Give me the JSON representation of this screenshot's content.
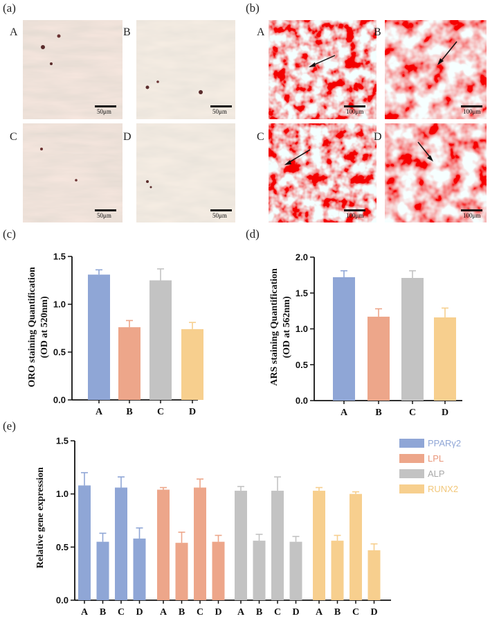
{
  "panels": {
    "a": "(a)",
    "b": "(b)",
    "c": "(c)",
    "d": "(d)",
    "e": "(e)"
  },
  "micrographs": {
    "a": {
      "images": [
        {
          "label": "A",
          "scale": "50μm"
        },
        {
          "label": "B",
          "scale": "50μm"
        },
        {
          "label": "C",
          "scale": "50μm"
        },
        {
          "label": "D",
          "scale": "50μm"
        }
      ]
    },
    "b": {
      "images": [
        {
          "label": "A",
          "scale": "100μm"
        },
        {
          "label": "B",
          "scale": "100μm"
        },
        {
          "label": "C",
          "scale": "100μm"
        },
        {
          "label": "D",
          "scale": "100μm"
        }
      ]
    }
  },
  "colors": {
    "blue": "#8fa6d6",
    "orange": "#eda68a",
    "gray": "#c3c3c3",
    "yellow": "#f7cf8e",
    "legend_blue": "#8fa6d6",
    "legend_orange": "#e9967a",
    "legend_gray": "#a8a8a8",
    "legend_yellow": "#f2c77a"
  },
  "chart_data": [
    {
      "id": "c",
      "type": "bar",
      "categories": [
        "A",
        "B",
        "C",
        "D"
      ],
      "values": [
        1.31,
        0.76,
        1.25,
        0.74
      ],
      "errors": [
        0.05,
        0.07,
        0.12,
        0.07
      ],
      "colors": [
        "#8fa6d6",
        "#eda68a",
        "#c3c3c3",
        "#f7cf8e"
      ],
      "ylabel_line1": "ORO staining Quantification",
      "ylabel_line2": "(OD at 520nm)",
      "ylim": [
        0,
        1.5
      ],
      "yticks": [
        "0.0",
        "0.5",
        "1.0",
        "1.5"
      ],
      "ytick_values": [
        0,
        0.5,
        1.0,
        1.5
      ]
    },
    {
      "id": "d",
      "type": "bar",
      "categories": [
        "A",
        "B",
        "C",
        "D"
      ],
      "values": [
        1.72,
        1.17,
        1.71,
        1.16
      ],
      "errors": [
        0.09,
        0.11,
        0.1,
        0.13
      ],
      "colors": [
        "#8fa6d6",
        "#eda68a",
        "#c3c3c3",
        "#f7cf8e"
      ],
      "ylabel_line1": "ARS staining Quantification",
      "ylabel_line2": "(OD at 562nm)",
      "ylim": [
        0,
        2.0
      ],
      "yticks": [
        "0.0",
        "0.5",
        "1.0",
        "1.5",
        "2.0"
      ],
      "ytick_values": [
        0,
        0.5,
        1.0,
        1.5,
        2.0
      ]
    },
    {
      "id": "e",
      "type": "bar",
      "ylabel": "Relative gene expression",
      "ylim": [
        0,
        1.5
      ],
      "yticks": [
        "0.0",
        "0.5",
        "1.0",
        "1.5"
      ],
      "ytick_values": [
        0,
        0.5,
        1.0,
        1.5
      ],
      "categories": [
        "A",
        "B",
        "C",
        "D"
      ],
      "series": [
        {
          "name": "PPARγ2",
          "color": "#8fa6d6",
          "values": [
            1.08,
            0.55,
            1.06,
            0.58
          ],
          "errors": [
            0.12,
            0.08,
            0.1,
            0.1
          ]
        },
        {
          "name": "LPL",
          "color": "#eda68a",
          "values": [
            1.04,
            0.54,
            1.06,
            0.55
          ],
          "errors": [
            0.02,
            0.1,
            0.08,
            0.06
          ]
        },
        {
          "name": "ALP",
          "color": "#c3c3c3",
          "values": [
            1.03,
            0.56,
            1.03,
            0.55
          ],
          "errors": [
            0.04,
            0.06,
            0.13,
            0.05
          ]
        },
        {
          "name": "RUNX2",
          "color": "#f7cf8e",
          "values": [
            1.03,
            0.56,
            1.0,
            0.47
          ],
          "errors": [
            0.03,
            0.05,
            0.02,
            0.06
          ]
        }
      ]
    }
  ]
}
